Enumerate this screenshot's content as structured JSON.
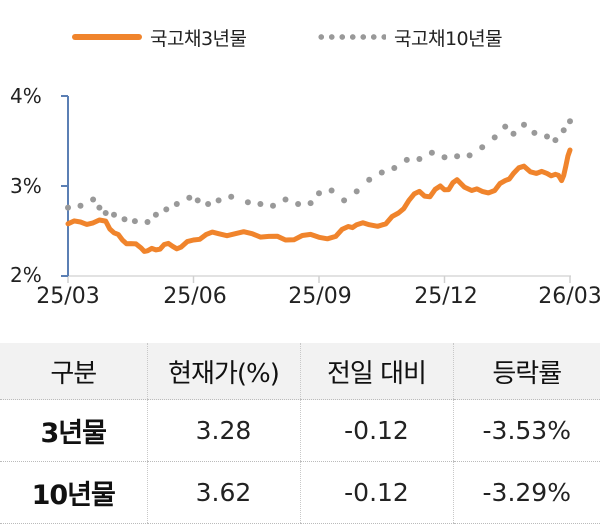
{
  "legend": {
    "series3": {
      "label": "국고채3년물",
      "color": "#f0842c",
      "style": "solid"
    },
    "series10": {
      "label": "국고채10년물",
      "color": "#999999",
      "style": "dotted"
    }
  },
  "axes": {
    "y_ticks": [
      "4%",
      "3%",
      "2%"
    ],
    "x_ticks": [
      "25/03",
      "25/06",
      "25/09",
      "25/12",
      "26/03"
    ],
    "axis_color": "#5b7fb4",
    "grid_color": "#d9d9d9"
  },
  "table": {
    "headers": [
      "구분",
      "현재가(%)",
      "전일 대비",
      "등락률"
    ],
    "rows": [
      {
        "name": "3년물",
        "price": "3.28",
        "change": "-0.12",
        "rate": "-3.53%"
      },
      {
        "name": "10년물",
        "price": "3.62",
        "change": "-0.12",
        "rate": "-3.29%"
      }
    ]
  },
  "chart_data": {
    "type": "line",
    "title": "",
    "xlabel": "",
    "ylabel": "",
    "ylim": [
      2,
      4
    ],
    "y_ticks": [
      2,
      3,
      4
    ],
    "x_ticks": [
      "25/03",
      "25/06",
      "25/09",
      "25/12",
      "26/03"
    ],
    "x_range": [
      0,
      12
    ],
    "legend_position": "top",
    "grid": false,
    "series": [
      {
        "name": "국고채3년물",
        "color": "#f0842c",
        "style": "solid",
        "x_month_index": [
          0,
          0.3,
          0.6,
          0.9,
          1.1,
          1.3,
          1.5,
          1.75,
          1.9,
          2.1,
          2.3,
          2.5,
          2.7,
          3.0,
          3.3,
          3.6,
          4.0,
          4.4,
          4.8,
          5.2,
          5.6,
          6.0,
          6.4,
          6.7,
          6.9,
          7.2,
          7.6,
          7.9,
          8.15,
          8.4,
          8.65,
          8.9,
          9.1,
          9.3,
          9.65,
          9.9,
          10.2,
          10.45,
          10.65,
          10.9,
          11.2,
          11.45,
          11.65,
          11.8,
          11.9,
          12.0
        ],
        "values": [
          2.58,
          2.6,
          2.59,
          2.61,
          2.48,
          2.4,
          2.36,
          2.31,
          2.28,
          2.29,
          2.35,
          2.33,
          2.32,
          2.4,
          2.46,
          2.47,
          2.47,
          2.47,
          2.44,
          2.4,
          2.45,
          2.43,
          2.44,
          2.55,
          2.57,
          2.57,
          2.58,
          2.7,
          2.84,
          2.94,
          2.88,
          3.0,
          2.96,
          3.07,
          2.95,
          2.94,
          2.95,
          3.06,
          3.14,
          3.22,
          3.14,
          3.14,
          3.13,
          3.06,
          3.22,
          3.4
        ]
      },
      {
        "name": "국고채10년물",
        "color": "#999999",
        "style": "dotted",
        "x_month_index": [
          0,
          0.3,
          0.6,
          0.75,
          0.9,
          1.1,
          1.35,
          1.6,
          1.9,
          2.1,
          2.35,
          2.6,
          2.9,
          3.1,
          3.35,
          3.6,
          3.9,
          4.3,
          4.6,
          4.9,
          5.2,
          5.5,
          5.8,
          6.0,
          6.3,
          6.6,
          6.9,
          7.2,
          7.5,
          7.8,
          8.1,
          8.4,
          8.7,
          9.0,
          9.3,
          9.6,
          9.9,
          10.2,
          10.45,
          10.65,
          10.9,
          11.15,
          11.45,
          11.65,
          11.85,
          12.0
        ],
        "values": [
          2.76,
          2.78,
          2.85,
          2.76,
          2.7,
          2.68,
          2.63,
          2.61,
          2.6,
          2.68,
          2.74,
          2.8,
          2.87,
          2.84,
          2.8,
          2.84,
          2.88,
          2.82,
          2.8,
          2.78,
          2.85,
          2.8,
          2.81,
          2.92,
          2.95,
          2.84,
          2.94,
          3.07,
          3.15,
          3.2,
          3.29,
          3.3,
          3.37,
          3.32,
          3.33,
          3.34,
          3.43,
          3.54,
          3.66,
          3.58,
          3.68,
          3.59,
          3.55,
          3.51,
          3.62,
          3.72
        ]
      }
    ]
  }
}
